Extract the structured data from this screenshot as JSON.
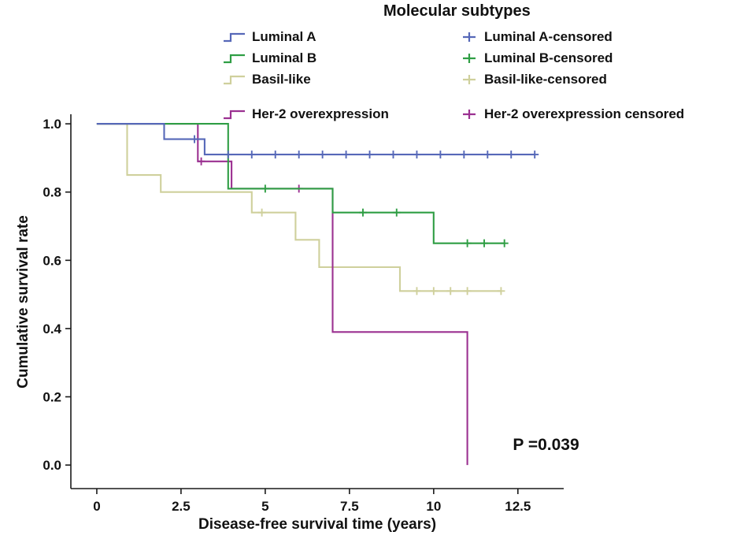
{
  "figure": {
    "background": "#ffffff"
  },
  "chart_data": {
    "type": "line",
    "variant": "kaplan-meier-step",
    "title": "Molecular subtypes",
    "xlabel": "Disease-free survival time (years)",
    "ylabel": "Cumulative survival rate",
    "xlim": [
      -0.77,
      13.86
    ],
    "ylim": [
      -0.069,
      1.028
    ],
    "xticks": [
      0,
      2.5,
      5,
      7.5,
      10,
      12.5
    ],
    "xtick_labels": [
      "0",
      "2.5",
      "5",
      "7.5",
      "10",
      "12.5"
    ],
    "yticks": [
      0,
      0.2,
      0.4,
      0.6,
      0.8,
      1
    ],
    "ytick_labels": [
      "0.0",
      "0.2",
      "0.4",
      "0.6",
      "0.8",
      "1.0"
    ],
    "grid": false,
    "legend_position": "top",
    "axis_color": "#1a1a1a",
    "text_color": "#111111",
    "annotation": {
      "text": "P =0.039",
      "x": 12.35,
      "y": 0.06
    },
    "series": [
      {
        "name": "Luminal A",
        "censored_name": "Luminal A-censored",
        "color": "#5668b8",
        "steps": [
          [
            0,
            1
          ],
          [
            2,
            1
          ],
          [
            2,
            0.955
          ],
          [
            3.2,
            0.955
          ],
          [
            3.2,
            0.91
          ],
          [
            13,
            0.91
          ]
        ],
        "censors": [
          [
            2.9,
            0.955
          ],
          [
            3.9,
            0.91
          ],
          [
            4.6,
            0.91
          ],
          [
            5.3,
            0.91
          ],
          [
            6,
            0.91
          ],
          [
            6.7,
            0.91
          ],
          [
            7.4,
            0.91
          ],
          [
            8.1,
            0.91
          ],
          [
            8.8,
            0.91
          ],
          [
            9.5,
            0.91
          ],
          [
            10.2,
            0.91
          ],
          [
            10.9,
            0.91
          ],
          [
            11.6,
            0.91
          ],
          [
            12.3,
            0.91
          ],
          [
            13,
            0.91
          ]
        ]
      },
      {
        "name": "Luminal B",
        "censored_name": "Luminal B-censored",
        "color": "#2f9e44",
        "steps": [
          [
            0,
            1
          ],
          [
            3.9,
            1
          ],
          [
            3.9,
            0.81
          ],
          [
            7,
            0.81
          ],
          [
            7,
            0.74
          ],
          [
            10,
            0.74
          ],
          [
            10,
            0.65
          ],
          [
            12.1,
            0.65
          ]
        ],
        "censors": [
          [
            5,
            0.81
          ],
          [
            7.9,
            0.74
          ],
          [
            8.9,
            0.74
          ],
          [
            11,
            0.65
          ],
          [
            11.5,
            0.65
          ],
          [
            12.1,
            0.65
          ]
        ]
      },
      {
        "name": "Basil-like",
        "censored_name": "Basil-like-censored",
        "color": "#cfd09c",
        "steps": [
          [
            0,
            1
          ],
          [
            0.9,
            1
          ],
          [
            0.9,
            0.85
          ],
          [
            1.9,
            0.85
          ],
          [
            1.9,
            0.8
          ],
          [
            4.6,
            0.8
          ],
          [
            4.6,
            0.74
          ],
          [
            5.9,
            0.74
          ],
          [
            5.9,
            0.66
          ],
          [
            6.6,
            0.66
          ],
          [
            6.6,
            0.58
          ],
          [
            9,
            0.58
          ],
          [
            9,
            0.51
          ],
          [
            12,
            0.51
          ]
        ],
        "censors": [
          [
            4.9,
            0.74
          ],
          [
            9.5,
            0.51
          ],
          [
            10,
            0.51
          ],
          [
            10.5,
            0.51
          ],
          [
            11,
            0.51
          ],
          [
            12,
            0.51
          ]
        ]
      },
      {
        "name": "Her-2 overexpression",
        "censored_name": "Her-2 overexpression censored",
        "color": "#9b3191",
        "steps": [
          [
            0,
            1
          ],
          [
            3,
            1
          ],
          [
            3,
            0.89
          ],
          [
            4,
            0.89
          ],
          [
            4,
            0.81
          ],
          [
            7,
            0.81
          ],
          [
            7,
            0.39
          ],
          [
            11,
            0.39
          ],
          [
            11,
            0
          ]
        ],
        "censors": [
          [
            3.1,
            0.89
          ],
          [
            6,
            0.81
          ]
        ]
      }
    ]
  }
}
